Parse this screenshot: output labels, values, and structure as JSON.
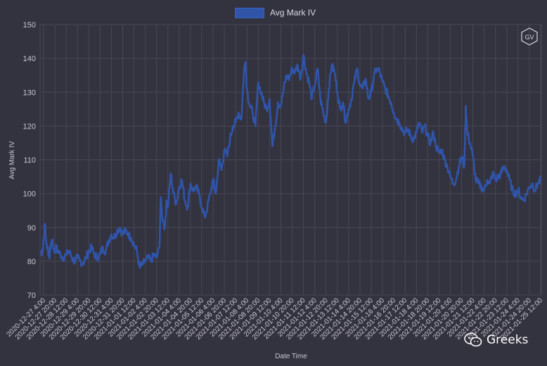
{
  "chart_data": {
    "type": "line",
    "title": "",
    "xlabel": "Date Time",
    "ylabel": "Avg Mark IV",
    "ylim": [
      70,
      150
    ],
    "yticks": [
      70,
      80,
      90,
      100,
      110,
      120,
      130,
      140,
      150
    ],
    "grid": true,
    "legend": "top-center",
    "series": [
      {
        "name": "Avg Mark IV",
        "color": "#2f54a8",
        "points": [
          [
            "2020-12-27 00:00",
            83
          ],
          [
            "2020-12-27 02:00",
            82.5
          ],
          [
            "2020-12-27 04:00",
            86
          ],
          [
            "2020-12-27 06:00",
            91
          ],
          [
            "2020-12-27 08:00",
            85
          ],
          [
            "2020-12-27 10:00",
            84
          ],
          [
            "2020-12-27 12:00",
            81
          ],
          [
            "2020-12-27 14:00",
            85
          ],
          [
            "2020-12-27 16:00",
            86
          ],
          [
            "2020-12-27 18:00",
            84
          ],
          [
            "2020-12-27 20:00",
            83
          ],
          [
            "2020-12-27 22:00",
            84
          ],
          [
            "2020-12-28 00:00",
            83
          ],
          [
            "2020-12-28 04:00",
            82
          ],
          [
            "2020-12-28 08:00",
            81
          ],
          [
            "2020-12-28 12:00",
            82
          ],
          [
            "2020-12-28 16:00",
            83
          ],
          [
            "2020-12-28 20:00",
            81
          ],
          [
            "2020-12-29 00:00",
            80
          ],
          [
            "2020-12-29 04:00",
            81
          ],
          [
            "2020-12-29 08:00",
            80
          ],
          [
            "2020-12-29 12:00",
            79.5
          ],
          [
            "2020-12-29 16:00",
            81
          ],
          [
            "2020-12-29 20:00",
            83
          ],
          [
            "2020-12-30 00:00",
            84
          ],
          [
            "2020-12-30 04:00",
            82
          ],
          [
            "2020-12-30 08:00",
            81
          ],
          [
            "2020-12-30 12:00",
            82
          ],
          [
            "2020-12-30 16:00",
            84
          ],
          [
            "2020-12-30 20:00",
            83
          ],
          [
            "2020-12-31 00:00",
            86
          ],
          [
            "2020-12-31 04:00",
            88
          ],
          [
            "2020-12-31 08:00",
            87
          ],
          [
            "2020-12-31 12:00",
            89
          ],
          [
            "2020-12-31 16:00",
            90
          ],
          [
            "2020-12-31 20:00",
            88
          ],
          [
            "2021-01-01 00:00",
            89
          ],
          [
            "2021-01-01 04:00",
            88
          ],
          [
            "2021-01-01 08:00",
            87
          ],
          [
            "2021-01-01 12:00",
            85
          ],
          [
            "2021-01-01 16:00",
            83
          ],
          [
            "2021-01-01 20:00",
            78
          ],
          [
            "2021-01-02 00:00",
            79
          ],
          [
            "2021-01-02 04:00",
            80
          ],
          [
            "2021-01-02 08:00",
            81
          ],
          [
            "2021-01-02 12:00",
            80
          ],
          [
            "2021-01-02 16:00",
            82
          ],
          [
            "2021-01-02 20:00",
            81
          ],
          [
            "2021-01-03 00:00",
            84
          ],
          [
            "2021-01-03 02:00",
            99
          ],
          [
            "2021-01-03 04:00",
            93
          ],
          [
            "2021-01-03 08:00",
            90
          ],
          [
            "2021-01-03 10:00",
            98
          ],
          [
            "2021-01-03 12:00",
            96
          ],
          [
            "2021-01-03 16:00",
            106
          ],
          [
            "2021-01-03 20:00",
            100
          ],
          [
            "2021-01-04 00:00",
            97
          ],
          [
            "2021-01-04 04:00",
            102
          ],
          [
            "2021-01-04 08:00",
            104
          ],
          [
            "2021-01-04 12:00",
            98
          ],
          [
            "2021-01-04 16:00",
            96
          ],
          [
            "2021-01-04 20:00",
            103
          ],
          [
            "2021-01-05 00:00",
            101
          ],
          [
            "2021-01-05 04:00",
            102
          ],
          [
            "2021-01-05 08:00",
            100
          ],
          [
            "2021-01-05 12:00",
            96
          ],
          [
            "2021-01-05 16:00",
            93
          ],
          [
            "2021-01-05 20:00",
            96
          ],
          [
            "2021-01-06 00:00",
            100
          ],
          [
            "2021-01-06 04:00",
            104
          ],
          [
            "2021-01-06 08:00",
            100
          ],
          [
            "2021-01-06 12:00",
            110
          ],
          [
            "2021-01-06 16:00",
            107
          ],
          [
            "2021-01-06 20:00",
            113
          ],
          [
            "2021-01-07 00:00",
            111
          ],
          [
            "2021-01-07 04:00",
            116
          ],
          [
            "2021-01-07 08:00",
            120
          ],
          [
            "2021-01-07 12:00",
            121
          ],
          [
            "2021-01-07 16:00",
            124
          ],
          [
            "2021-01-07 20:00",
            122
          ],
          [
            "2021-01-08 00:00",
            137
          ],
          [
            "2021-01-08 02:00",
            139
          ],
          [
            "2021-01-08 04:00",
            131
          ],
          [
            "2021-01-08 08:00",
            126
          ],
          [
            "2021-01-08 12:00",
            124
          ],
          [
            "2021-01-08 16:00",
            120
          ],
          [
            "2021-01-08 20:00",
            133
          ],
          [
            "2021-01-09 00:00",
            130
          ],
          [
            "2021-01-09 04:00",
            127
          ],
          [
            "2021-01-09 08:00",
            125
          ],
          [
            "2021-01-09 12:00",
            128
          ],
          [
            "2021-01-09 16:00",
            114
          ],
          [
            "2021-01-09 20:00",
            120
          ],
          [
            "2021-01-10 00:00",
            127
          ],
          [
            "2021-01-10 04:00",
            126
          ],
          [
            "2021-01-10 08:00",
            131
          ],
          [
            "2021-01-10 12:00",
            135
          ],
          [
            "2021-01-10 16:00",
            134
          ],
          [
            "2021-01-10 20:00",
            137
          ],
          [
            "2021-01-11 00:00",
            136
          ],
          [
            "2021-01-11 04:00",
            138
          ],
          [
            "2021-01-11 08:00",
            134
          ],
          [
            "2021-01-11 12:00",
            141
          ],
          [
            "2021-01-11 16:00",
            136
          ],
          [
            "2021-01-11 20:00",
            133
          ],
          [
            "2021-01-12 00:00",
            128
          ],
          [
            "2021-01-12 04:00",
            132
          ],
          [
            "2021-01-12 08:00",
            137
          ],
          [
            "2021-01-12 12:00",
            128
          ],
          [
            "2021-01-12 16:00",
            124
          ],
          [
            "2021-01-12 20:00",
            121
          ],
          [
            "2021-01-13 00:00",
            131
          ],
          [
            "2021-01-13 04:00",
            138
          ],
          [
            "2021-01-13 08:00",
            136
          ],
          [
            "2021-01-13 12:00",
            130
          ],
          [
            "2021-01-13 16:00",
            125
          ],
          [
            "2021-01-13 20:00",
            127
          ],
          [
            "2021-01-14 00:00",
            121
          ],
          [
            "2021-01-14 04:00",
            125
          ],
          [
            "2021-01-14 08:00",
            128
          ],
          [
            "2021-01-14 12:00",
            133
          ],
          [
            "2021-01-14 16:00",
            137
          ],
          [
            "2021-01-14 20:00",
            132
          ],
          [
            "2021-01-15 00:00",
            131
          ],
          [
            "2021-01-15 04:00",
            134
          ],
          [
            "2021-01-15 08:00",
            128
          ],
          [
            "2021-01-15 12:00",
            130
          ],
          [
            "2021-01-15 16:00",
            135
          ],
          [
            "2021-01-15 20:00",
            137
          ],
          [
            "2021-01-16 00:00",
            136
          ],
          [
            "2021-01-16 04:00",
            133
          ],
          [
            "2021-01-16 08:00",
            131
          ],
          [
            "2021-01-16 12:00",
            129
          ],
          [
            "2021-01-16 16:00",
            127
          ],
          [
            "2021-01-16 20:00",
            124
          ],
          [
            "2021-01-17 00:00",
            122
          ],
          [
            "2021-01-17 04:00",
            121
          ],
          [
            "2021-01-17 08:00",
            119
          ],
          [
            "2021-01-17 12:00",
            118
          ],
          [
            "2021-01-17 16:00",
            119
          ],
          [
            "2021-01-17 20:00",
            117
          ],
          [
            "2021-01-18 00:00",
            116
          ],
          [
            "2021-01-18 04:00",
            118
          ],
          [
            "2021-01-18 08:00",
            121
          ],
          [
            "2021-01-18 12:00",
            118
          ],
          [
            "2021-01-18 16:00",
            120
          ],
          [
            "2021-01-18 20:00",
            117
          ],
          [
            "2021-01-19 00:00",
            115
          ],
          [
            "2021-01-19 04:00",
            118
          ],
          [
            "2021-01-19 08:00",
            114
          ],
          [
            "2021-01-19 12:00",
            112
          ],
          [
            "2021-01-19 16:00",
            113
          ],
          [
            "2021-01-19 20:00",
            110
          ],
          [
            "2021-01-20 00:00",
            108
          ],
          [
            "2021-01-20 04:00",
            105
          ],
          [
            "2021-01-20 08:00",
            103
          ],
          [
            "2021-01-20 12:00",
            104
          ],
          [
            "2021-01-20 16:00",
            108
          ],
          [
            "2021-01-20 20:00",
            111
          ],
          [
            "2021-01-21 00:00",
            108
          ],
          [
            "2021-01-21 02:00",
            126
          ],
          [
            "2021-01-21 04:00",
            118
          ],
          [
            "2021-01-21 08:00",
            115
          ],
          [
            "2021-01-21 12:00",
            111
          ],
          [
            "2021-01-21 16:00",
            104
          ],
          [
            "2021-01-21 20:00",
            103
          ],
          [
            "2021-01-22 00:00",
            102
          ],
          [
            "2021-01-22 04:00",
            101
          ],
          [
            "2021-01-22 08:00",
            104
          ],
          [
            "2021-01-22 12:00",
            103
          ],
          [
            "2021-01-22 16:00",
            106
          ],
          [
            "2021-01-22 20:00",
            104
          ],
          [
            "2021-01-23 00:00",
            105
          ],
          [
            "2021-01-23 04:00",
            106
          ],
          [
            "2021-01-23 08:00",
            108
          ],
          [
            "2021-01-23 12:00",
            107
          ],
          [
            "2021-01-23 16:00",
            104
          ],
          [
            "2021-01-23 20:00",
            101
          ],
          [
            "2021-01-24 00:00",
            100
          ],
          [
            "2021-01-24 04:00",
            101
          ],
          [
            "2021-01-24 08:00",
            99
          ],
          [
            "2021-01-24 12:00",
            98
          ],
          [
            "2021-01-24 16:00",
            100
          ],
          [
            "2021-01-24 20:00",
            102
          ],
          [
            "2021-01-25 00:00",
            103
          ],
          [
            "2021-01-25 04:00",
            101
          ],
          [
            "2021-01-25 08:00",
            103
          ],
          [
            "2021-01-25 12:00",
            104
          ]
        ]
      }
    ],
    "xtick_labels": [
      "2020-12-27  4:00",
      "2020-12-27  20:00",
      "2020-12-28  12:00",
      "2020-12-29  4:00",
      "2020-12-29  20:00",
      "2020-12-30  12:00",
      "2020-12-31  4:00",
      "2020-12-31  20:00",
      "2021-01-01  12:00",
      "2021-01-02  4:00",
      "2021-01-02  20:00",
      "2021-01-03  12:00",
      "2021-01-04  4:00",
      "2021-01-04  20:00",
      "2021-01-05  12:00",
      "2021-01-06  4:00",
      "2021-01-06  20:00",
      "2021-01-07  12:00",
      "2021-01-08  4:00",
      "2021-01-08  20:00",
      "2021-01-09  12:00",
      "2021-01-10  4:00",
      "2021-01-10  20:00",
      "2021-01-11  12:00",
      "2021-01-12  4:00",
      "2021-01-12  20:00",
      "2021-01-13  12:00",
      "2021-01-14  4:00",
      "2021-01-14  20:00",
      "2021-01-15  12:00",
      "2021-01-16  4:00",
      "2021-01-16  20:00",
      "2021-01-17  12:00",
      "2021-01-18  4:00",
      "2021-01-18  20:00",
      "2021-01-19  12:00",
      "2021-01-20  4:00",
      "2021-01-20  20:00",
      "2021-01-21  12:00",
      "2021-01-22  4:00",
      "2021-01-22  20:00",
      "2021-01-23  12:00",
      "2021-01-24  4:00",
      "2021-01-24  20:00",
      "2021-01-25  12:00"
    ]
  },
  "branding": {
    "logo_text": "GV",
    "watermark_text": "Greeks",
    "watermark_icon": "wechat-icon"
  },
  "colors": {
    "background": "#33323f",
    "grid": "#484756",
    "line": "#2f54a8",
    "axis_text": "#c8c8d0"
  }
}
